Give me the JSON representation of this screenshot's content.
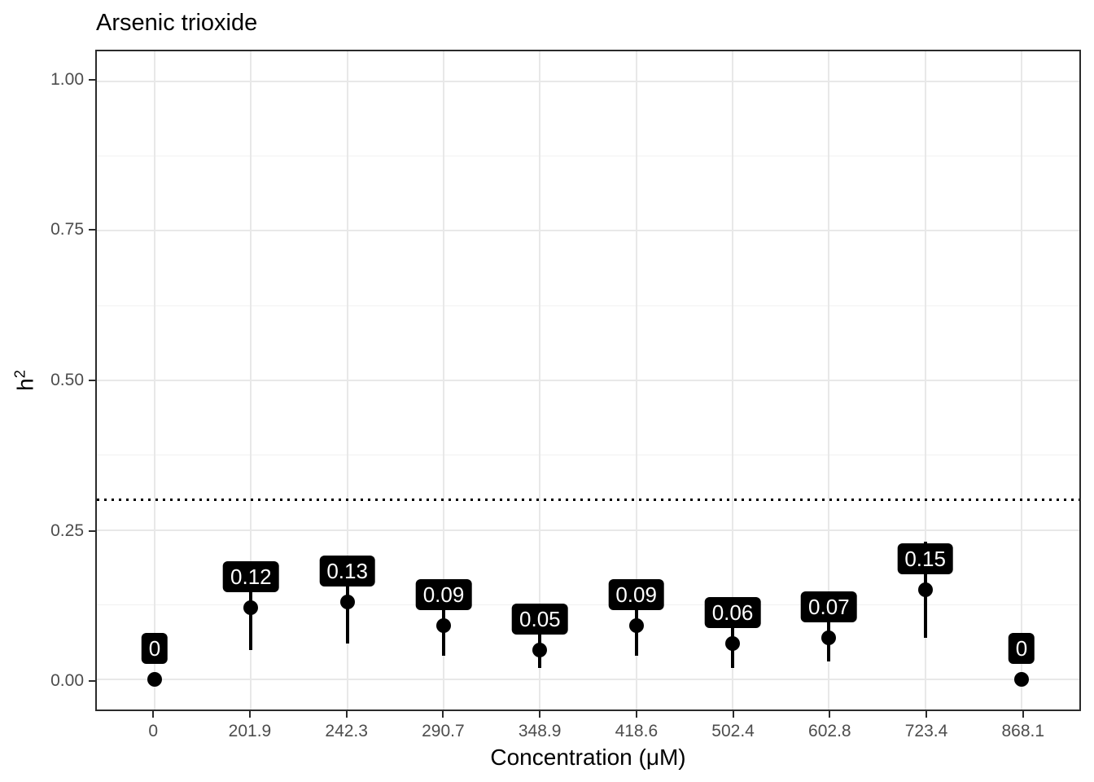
{
  "chart_data": {
    "type": "scatter",
    "subtype": "pointrange-with-labels",
    "title": "Arsenic trioxide",
    "xlabel": "Concentration (μM)",
    "ylabel": "h²",
    "ylabel_parts": {
      "base": "h",
      "sup": "2"
    },
    "categories": [
      "0",
      "201.9",
      "242.3",
      "290.7",
      "348.9",
      "418.6",
      "502.4",
      "602.8",
      "723.4",
      "868.1"
    ],
    "values": [
      0,
      0.12,
      0.13,
      0.09,
      0.05,
      0.09,
      0.06,
      0.07,
      0.15,
      0
    ],
    "point_labels": [
      "0",
      "0.12",
      "0.13",
      "0.09",
      "0.05",
      "0.09",
      "0.06",
      "0.07",
      "0.15",
      "0"
    ],
    "error_low": [
      0,
      0.05,
      0.06,
      0.04,
      0.02,
      0.04,
      0.02,
      0.03,
      0.07,
      0
    ],
    "error_high": [
      0,
      0.19,
      0.2,
      0.14,
      0.08,
      0.14,
      0.1,
      0.11,
      0.23,
      0
    ],
    "reference_line_y": 0.3,
    "ylim": [
      -0.05,
      1.05
    ],
    "y_ticks": [
      0,
      0.25,
      0.5,
      0.75,
      1.0
    ],
    "y_tick_labels": [
      "0.00",
      "0.25",
      "0.50",
      "0.75",
      "1.00"
    ],
    "y_minor_ticks": [
      0.125,
      0.375,
      0.625,
      0.875
    ],
    "grid": true,
    "legend": false,
    "colors": {
      "point": "#000000",
      "error_bar": "#000000",
      "label_bg": "#000000",
      "label_text": "#ffffff",
      "grid_major": "#e8e8e8",
      "grid_minor": "#f1f1f1",
      "panel_border": "#2b2b2b",
      "tick_text": "#4d4d4d",
      "reference_line": "#000000",
      "background": "#ffffff"
    }
  }
}
